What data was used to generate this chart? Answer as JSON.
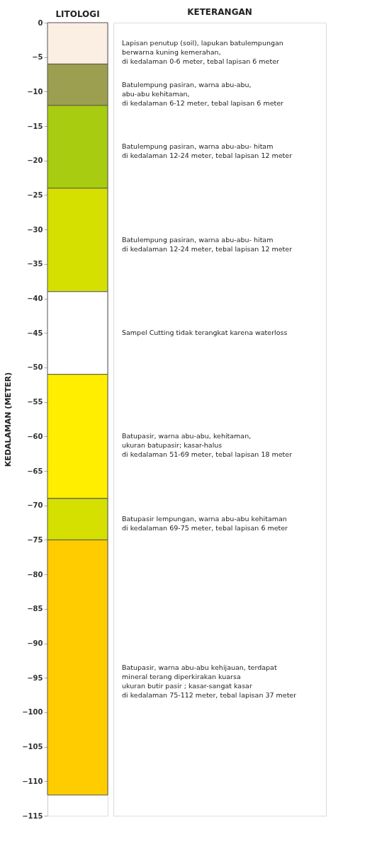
{
  "chart_data": {
    "type": "bar",
    "stacked": true,
    "categories": [
      "LITOLOGI"
    ],
    "ylabel": "KEDALAMAN (METER)",
    "ylim": [
      -115,
      0
    ],
    "yticks": [
      0,
      -5,
      -10,
      -15,
      -20,
      -25,
      -30,
      -35,
      -40,
      -45,
      -50,
      -55,
      -60,
      -65,
      -70,
      -75,
      -80,
      -85,
      -90,
      -95,
      -100,
      -105,
      -110,
      -115
    ],
    "legend": false,
    "series": [
      {
        "color": "#fbeee3",
        "values": [
          -6
        ]
      },
      {
        "color": "#9c9f50",
        "values": [
          -6
        ]
      },
      {
        "color": "#a8cc10",
        "values": [
          -12
        ]
      },
      {
        "color": "#d6e000",
        "values": [
          -15
        ]
      },
      {
        "color": "#ffffff",
        "values": [
          -12
        ]
      },
      {
        "color": "#ffee00",
        "values": [
          -18
        ]
      },
      {
        "color": "#d6e000",
        "values": [
          -6
        ]
      },
      {
        "color": "#ffcc00",
        "values": [
          -37
        ]
      }
    ],
    "annotations": [
      "KETERANGAN",
      "Lapisan penutup (soil), lapukan batulempungan\nberwarna kuning kemerahan,\ndi kedalaman 0-6 meter, tebal lapisan 6 meter",
      "Batulempung pasiran, warna abu-abu,\nabu-abu kehitaman,\ndi kedalaman 6-12 meter, tebal lapisan 6 meter",
      "Batulempung pasiran, warna abu-abu- hitam\ndi kedalaman 12-24 meter, tebal lapisan 12 meter",
      "Batulempung pasiran, warna abu-abu- hitam\ndi kedalaman 12-24 meter, tebal lapisan 12 meter",
      "Sampel Cutting tidak terangkat karena waterloss",
      "Batupasir, warna abu-abu, kehitaman,\nukuran batupasir; kasar-halus\ndi kedalaman 51-69 meter, tebal lapisan 18 meter",
      "Batupasir lempungan, warna abu-abu kehitaman\ndi kedalaman 69-75 meter, tebal lapisan 6 meter",
      "Batupasir, warna abu-abu kehijauan, terdapat\nmineral terang diperkirakan kuarsa\nukuran butir pasir ; kasar-sangat kasar\ndi kedalaman 75-112 meter, tebal lapisan 37 meter"
    ]
  }
}
